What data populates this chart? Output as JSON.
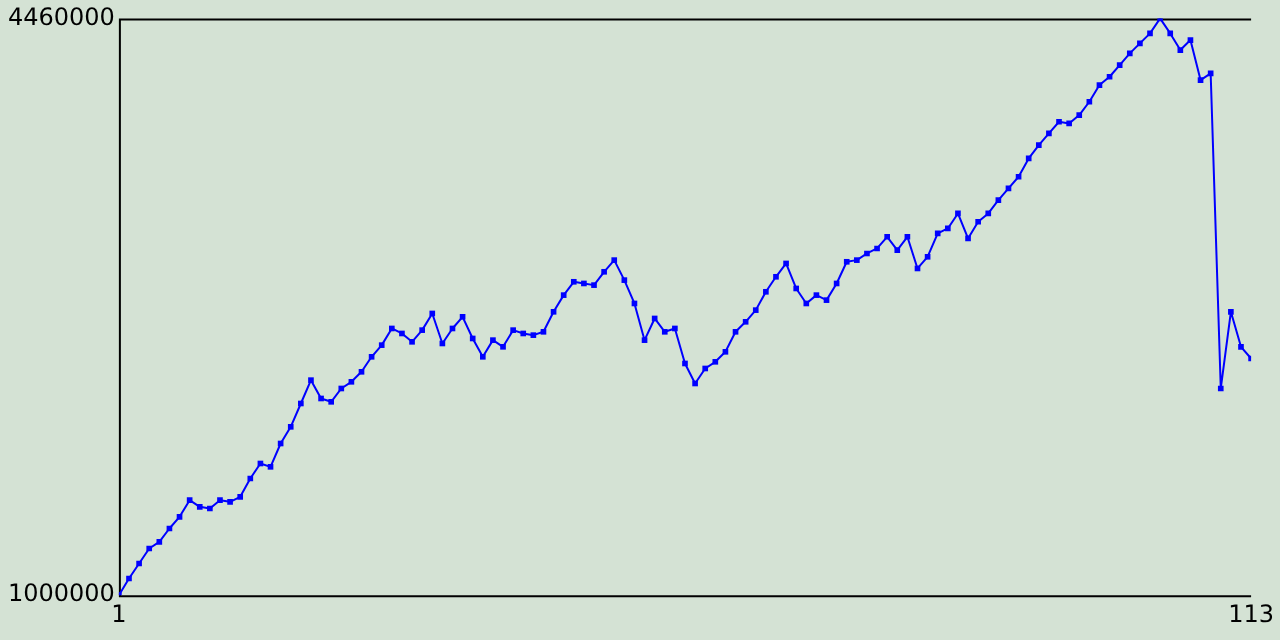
{
  "chart_data": {
    "type": "line",
    "x": [
      1,
      2,
      3,
      4,
      5,
      6,
      7,
      8,
      9,
      10,
      11,
      12,
      13,
      14,
      15,
      16,
      17,
      18,
      19,
      20,
      21,
      22,
      23,
      24,
      25,
      26,
      27,
      28,
      29,
      30,
      31,
      32,
      33,
      34,
      35,
      36,
      37,
      38,
      39,
      40,
      41,
      42,
      43,
      44,
      45,
      46,
      47,
      48,
      49,
      50,
      51,
      52,
      53,
      54,
      55,
      56,
      57,
      58,
      59,
      60,
      61,
      62,
      63,
      64,
      65,
      66,
      67,
      68,
      69,
      70,
      71,
      72,
      73,
      74,
      75,
      76,
      77,
      78,
      79,
      80,
      81,
      82,
      83,
      84,
      85,
      86,
      87,
      88,
      89,
      90,
      91,
      92,
      93,
      94,
      95,
      96,
      97,
      98,
      99,
      100,
      101,
      102,
      103,
      104,
      105,
      106,
      107,
      108,
      109,
      110,
      111,
      112,
      113
    ],
    "series": [
      {
        "color": "#0000ff",
        "values": [
          1000000,
          1100000,
          1190000,
          1280000,
          1320000,
          1400000,
          1470000,
          1570000,
          1530000,
          1520000,
          1570000,
          1560000,
          1590000,
          1700000,
          1790000,
          1770000,
          1910000,
          2010000,
          2150000,
          2290000,
          2180000,
          2160000,
          2240000,
          2280000,
          2340000,
          2430000,
          2500000,
          2600000,
          2570000,
          2520000,
          2590000,
          2690000,
          2510000,
          2600000,
          2670000,
          2540000,
          2430000,
          2530000,
          2490000,
          2590000,
          2570000,
          2560000,
          2580000,
          2700000,
          2800000,
          2880000,
          2870000,
          2860000,
          2940000,
          3010000,
          2890000,
          2750000,
          2530000,
          2660000,
          2580000,
          2600000,
          2390000,
          2270000,
          2360000,
          2400000,
          2460000,
          2580000,
          2640000,
          2710000,
          2820000,
          2910000,
          2990000,
          2840000,
          2750000,
          2800000,
          2770000,
          2870000,
          3000000,
          3010000,
          3050000,
          3080000,
          3150000,
          3070000,
          3150000,
          2960000,
          3030000,
          3170000,
          3200000,
          3290000,
          3140000,
          3240000,
          3290000,
          3370000,
          3440000,
          3510000,
          3620000,
          3700000,
          3770000,
          3840000,
          3830000,
          3880000,
          3960000,
          4060000,
          4110000,
          4180000,
          4250000,
          4310000,
          4370000,
          4460000,
          4370000,
          4270000,
          4330000,
          4090000,
          4130000,
          2240000,
          2700000,
          2490000,
          2420000
        ]
      }
    ],
    "xlim": [
      1,
      113
    ],
    "xticks": [
      1,
      113
    ],
    "ylim": [
      1000000,
      4460000
    ],
    "yticks": [
      1000000,
      4460000
    ],
    "grid": false,
    "legend": false,
    "marker": "square",
    "line_style": "solid"
  }
}
